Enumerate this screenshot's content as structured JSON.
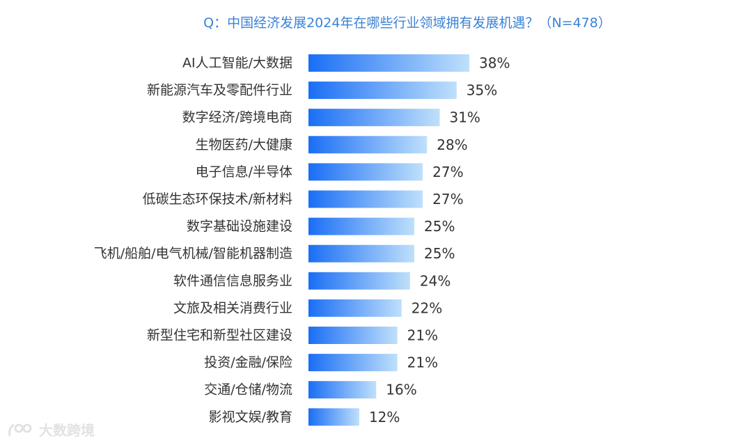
{
  "chart_data": {
    "type": "bar",
    "orientation": "horizontal",
    "title": "Q：中国经济发展2024年在哪些行业领域拥有发展机遇？（N=478）",
    "categories": [
      "AI人工智能/大数据",
      "新能源汽车及零配件行业",
      "数字经济/跨境电商",
      "生物医药/大健康",
      "电子信息/半导体",
      "低碳生态环保技术/新材料",
      "数字基础设施建设",
      "飞机/船舶/电气机械/智能机器制造",
      "软件通信信息服务业",
      "文旅及相关消费行业",
      "新型住宅和新型社区建设",
      "投资/金融/保险",
      "交通/仓储/物流",
      "影视文娱/教育"
    ],
    "values": [
      38,
      35,
      31,
      28,
      27,
      27,
      25,
      25,
      24,
      22,
      21,
      21,
      16,
      12
    ],
    "value_labels": [
      "38%",
      "35%",
      "31%",
      "28%",
      "27%",
      "27%",
      "25%",
      "25%",
      "24%",
      "22%",
      "21%",
      "21%",
      "16%",
      "12%"
    ],
    "unit": "%",
    "xlabel": "",
    "ylabel": "",
    "grid": false,
    "legend": "none",
    "colors": {
      "bar_start": "#1a6ef5",
      "bar_end": "#bfe0fb",
      "title": "#3b82d6"
    }
  },
  "watermark": {
    "text": "大数跨境"
  }
}
